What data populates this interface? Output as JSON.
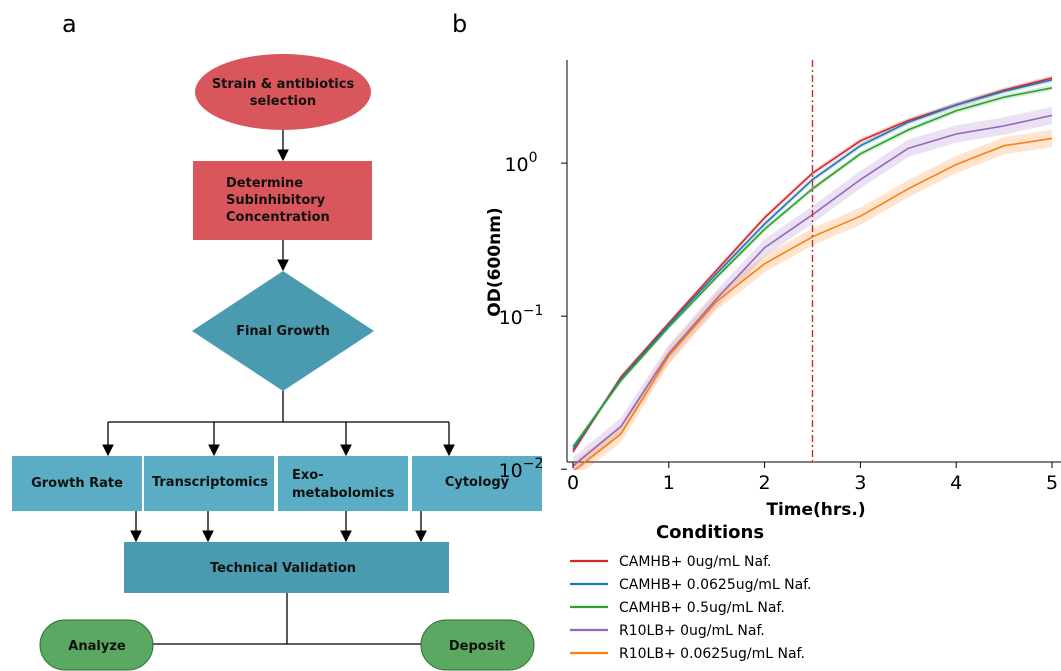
{
  "panels": {
    "a": "a",
    "b": "b"
  },
  "flowchart": {
    "nodes": {
      "strain": [
        "Strain & antibiotics",
        "selection"
      ],
      "sic": [
        "Determine",
        "Subinhibitory",
        "Concentration"
      ],
      "final": [
        "Final Growth"
      ],
      "growth_rate": [
        "Growth Rate"
      ],
      "transcriptomics": [
        "Transcriptomics"
      ],
      "exometabolomics": [
        "Exo-",
        "metabolomics"
      ],
      "cytology": [
        "Cytology"
      ],
      "validation": [
        "Technical Validation"
      ],
      "analyze": [
        "Analyze"
      ],
      "deposit": [
        "Deposit"
      ]
    },
    "colors": {
      "red": "#d9575c",
      "teal": "#4a9bb0",
      "box_blue": "#5aadc4",
      "green": "#5aa861"
    }
  },
  "chart_data": {
    "type": "line",
    "title": "",
    "xlabel": "Time(hrs.)",
    "ylabel": "OD(600nm)",
    "xlim": [
      0,
      5
    ],
    "ylim": [
      0.0085,
      4.0
    ],
    "yscale": "log",
    "xticks": [
      "0",
      "1",
      "2",
      "3",
      "4",
      "5"
    ],
    "yticks": [
      {
        "value": 0.01,
        "base": "10",
        "exp": "−2"
      },
      {
        "value": 0.1,
        "base": "10",
        "exp": "−1"
      },
      {
        "value": 1,
        "base": "10",
        "exp": "0"
      }
    ],
    "vline": {
      "x": 2.5,
      "color": "#d62728",
      "style": "dash-dot"
    },
    "x": [
      0,
      0.5,
      1,
      1.5,
      2,
      2.5,
      3,
      3.5,
      4,
      4.5,
      5
    ],
    "series": [
      {
        "name": "CAMHB+ 0ug/mL Naf.",
        "color": "#d62728",
        "values": [
          0.013,
          0.04,
          0.09,
          0.2,
          0.44,
          0.86,
          1.4,
          1.9,
          2.4,
          3.0,
          3.6
        ]
      },
      {
        "name": "CAMHB+ 0.0625ug/mL Naf.",
        "color": "#1f77b4",
        "values": [
          0.0135,
          0.039,
          0.088,
          0.19,
          0.4,
          0.78,
          1.3,
          1.85,
          2.4,
          2.95,
          3.5
        ]
      },
      {
        "name": "CAMHB+ 0.5ug/mL Naf.",
        "color": "#2ca02c",
        "values": [
          0.014,
          0.038,
          0.085,
          0.18,
          0.37,
          0.68,
          1.15,
          1.65,
          2.2,
          2.7,
          3.1
        ]
      },
      {
        "name": "R10LB+ 0ug/mL Naf.",
        "color": "#9467bd",
        "values": [
          0.0105,
          0.019,
          0.057,
          0.13,
          0.28,
          0.46,
          0.78,
          1.25,
          1.55,
          1.75,
          2.05
        ]
      },
      {
        "name": "R10LB+ 0.0625ug/mL Naf.",
        "color": "#ff7f0e",
        "values": [
          0.0097,
          0.017,
          0.055,
          0.125,
          0.22,
          0.33,
          0.45,
          0.68,
          0.98,
          1.3,
          1.45
        ]
      }
    ],
    "legend": {
      "title": "Conditions",
      "placement": "below"
    }
  }
}
